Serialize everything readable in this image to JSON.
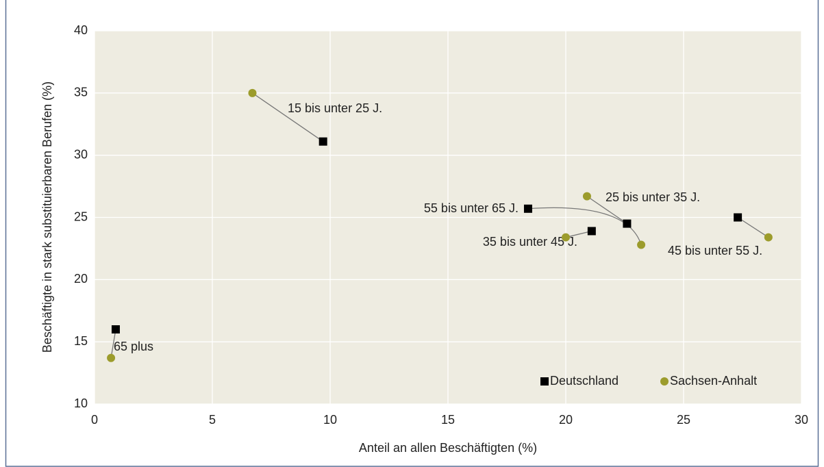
{
  "chart_data": {
    "type": "scatter",
    "x_label": "Anteil an allen Beschäftigten (%)",
    "y_label": "Beschäftigte in stark substituierbaren Berufen (%)",
    "categories": [
      "65 plus",
      "15 bis unter 25 J.",
      "55 bis unter 65 J.",
      "35 bis unter 45 J.",
      "25 bis unter 35 J.",
      "45 bis unter 55 J."
    ],
    "series": [
      {
        "name": "Deutschland",
        "color": "#000000",
        "marker": "square",
        "x": [
          0.9,
          9.7,
          18.4,
          21.1,
          22.6,
          27.3
        ],
        "values": [
          16.0,
          31.1,
          25.7,
          23.9,
          24.5,
          25.0
        ]
      },
      {
        "name": "Sachsen-Anhalt",
        "color": "#9c9c2c",
        "marker": "circle",
        "x": [
          0.7,
          6.7,
          23.2,
          20.0,
          20.9,
          28.6
        ],
        "values": [
          13.7,
          35.0,
          22.8,
          23.4,
          26.7,
          23.4
        ]
      }
    ],
    "xlim": [
      0,
      30
    ],
    "xticks": [
      0,
      5,
      10,
      15,
      20,
      25,
      30
    ],
    "ylim": [
      10,
      40
    ],
    "yticks": [
      10,
      15,
      20,
      25,
      30,
      35,
      40
    ],
    "grid": true,
    "legend": "lower right"
  }
}
